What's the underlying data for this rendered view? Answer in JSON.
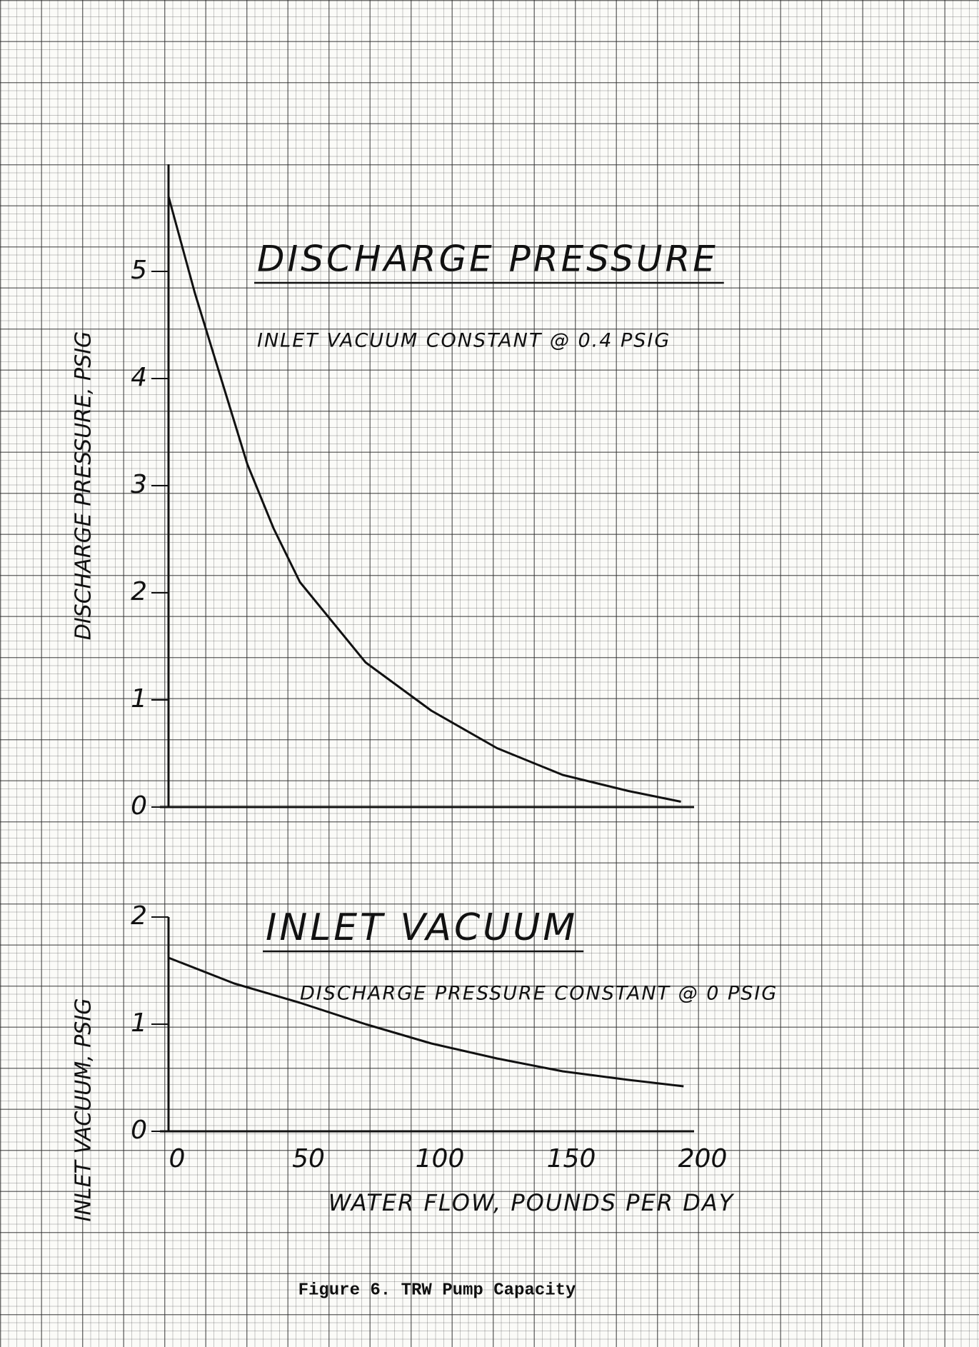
{
  "chart_data": [
    {
      "type": "line",
      "title": "DISCHARGE PRESSURE",
      "subtitle": "INLET VACUUM CONSTANT @ 0.4 PSIG",
      "ylabel": "DISCHARGE PRESSURE, PSIG",
      "x": [
        0,
        10,
        20,
        30,
        40,
        50,
        75,
        100,
        125,
        150,
        175,
        195
      ],
      "values": [
        5.7,
        4.8,
        4.0,
        3.2,
        2.6,
        2.1,
        1.35,
        0.9,
        0.55,
        0.3,
        0.15,
        0.05
      ],
      "color": "#111111",
      "xlim": [
        0,
        200
      ],
      "ylim": [
        0,
        6
      ],
      "yticks": [
        0,
        1,
        2,
        3,
        4,
        5
      ]
    },
    {
      "type": "line",
      "title": "INLET VACUUM",
      "subtitle": "DISCHARGE PRESSURE CONSTANT @ 0 PSIG",
      "ylabel": "INLET VACUUM, PSIG",
      "xlabel": "WATER FLOW, POUNDS PER DAY",
      "x": [
        0,
        25,
        50,
        75,
        100,
        125,
        150,
        175,
        196
      ],
      "values": [
        1.62,
        1.38,
        1.2,
        1.0,
        0.82,
        0.68,
        0.56,
        0.48,
        0.42
      ],
      "color": "#111111",
      "xlim": [
        0,
        200
      ],
      "ylim": [
        0,
        2
      ],
      "xticks": [
        0,
        50,
        100,
        150,
        200
      ],
      "yticks": [
        0,
        1,
        2
      ]
    }
  ],
  "caption": "Figure 6.  TRW Pump Capacity"
}
